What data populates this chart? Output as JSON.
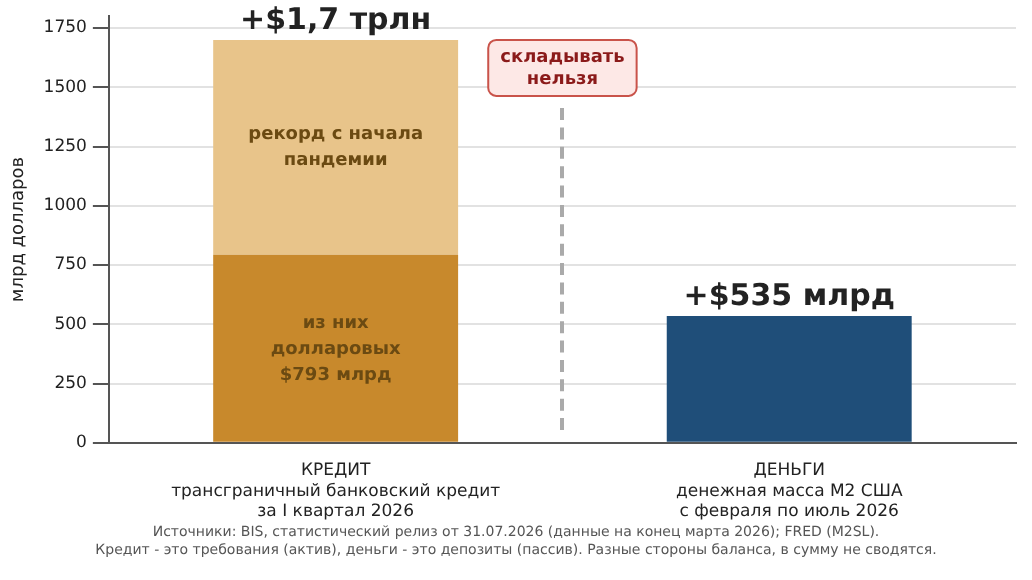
{
  "chart_data": {
    "type": "bar",
    "stacked": true,
    "categories": [
      "КРЕДИТ\nтрансграничный банковский кредит\nза I квартал 2026",
      "ДЕНЬГИ\nденежная масса M2 США\nс февраля по июль 2026"
    ],
    "series": [
      {
        "color": "#c8892c",
        "values": [
          793,
          null
        ],
        "value_labels": [
          "из них\nдолларовых\n$793 млрд",
          null
        ]
      },
      {
        "color": "#e8c48a",
        "values": [
          907,
          null
        ]
      },
      {
        "color": "#1f4e79",
        "values": [
          null,
          535
        ]
      }
    ],
    "ylabel": "млрд долларов",
    "ylim": [
      0,
      1800
    ],
    "yticks": [
      0,
      250,
      500,
      750,
      1000,
      1250,
      1500,
      1750
    ],
    "grid": "y",
    "legend": false,
    "annotations": [
      "складывать\nнельзя",
      "рекорд с начала\nпандемии",
      {
        "text": "+$1,7 трлн",
        "x": "КРЕДИТ\nтрансграничный банковский кредит\nза I квартал 2026",
        "y": 1700
      },
      {
        "text": "+$535 млрд",
        "x": "ДЕНЬГИ\nденежная масса M2 США\nс февраля по июль 2026",
        "y": 535
      },
      "Источники: BIS, статистический релиз от 31.07.2026 (данные на конец марта 2026); FRED (M2SL).",
      "Кредит - это требования (актив), деньги - это депозиты (пассив). Разные стороны баланса, в сумму не сводятся."
    ]
  }
}
